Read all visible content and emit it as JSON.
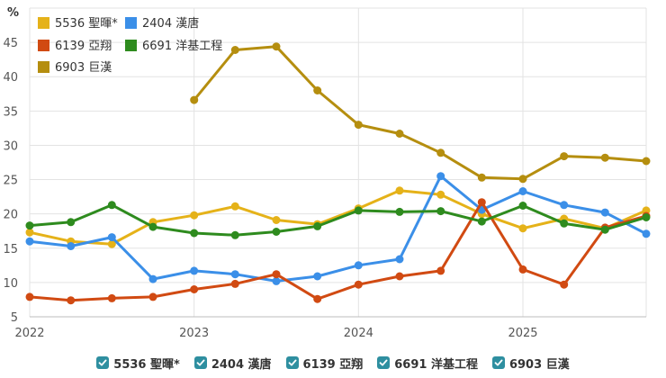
{
  "chart_data": {
    "type": "line",
    "y_unit": "%",
    "ylim": [
      5,
      50
    ],
    "y_ticks": [
      "5",
      "10",
      "15",
      "20",
      "25",
      "30",
      "35",
      "40",
      "45"
    ],
    "xlim": [
      2022.0,
      2025.75
    ],
    "x_ticks": [
      "2022",
      "2023",
      "2024",
      "2025"
    ],
    "grid": true,
    "legend_position": "top-left",
    "series": [
      {
        "name": "5536 聖暉*",
        "color": "#e5b219",
        "points": [
          [
            2022.0,
            17.3
          ],
          [
            2022.25,
            16.0
          ],
          [
            2022.5,
            15.6
          ],
          [
            2022.75,
            18.8
          ],
          [
            2023.0,
            19.8
          ],
          [
            2023.25,
            21.1
          ],
          [
            2023.5,
            19.1
          ],
          [
            2023.75,
            18.5
          ],
          [
            2024.0,
            20.8
          ],
          [
            2024.25,
            23.4
          ],
          [
            2024.5,
            22.8
          ],
          [
            2024.75,
            20.0
          ],
          [
            2025.0,
            17.9
          ],
          [
            2025.25,
            19.3
          ],
          [
            2025.5,
            17.9
          ],
          [
            2025.75,
            20.5
          ]
        ]
      },
      {
        "name": "2404 漢唐",
        "color": "#3b8fe8",
        "points": [
          [
            2022.0,
            16.0
          ],
          [
            2022.25,
            15.3
          ],
          [
            2022.5,
            16.6
          ],
          [
            2022.75,
            10.5
          ],
          [
            2023.0,
            11.7
          ],
          [
            2023.25,
            11.2
          ],
          [
            2023.5,
            10.2
          ],
          [
            2023.75,
            10.9
          ],
          [
            2024.0,
            12.5
          ],
          [
            2024.25,
            13.4
          ],
          [
            2024.5,
            25.5
          ],
          [
            2024.75,
            20.6
          ],
          [
            2025.0,
            23.3
          ],
          [
            2025.25,
            21.3
          ],
          [
            2025.5,
            20.2
          ],
          [
            2025.75,
            17.1
          ]
        ]
      },
      {
        "name": "6139 亞翔",
        "color": "#d14a12",
        "points": [
          [
            2022.0,
            7.9
          ],
          [
            2022.25,
            7.4
          ],
          [
            2022.5,
            7.7
          ],
          [
            2022.75,
            7.9
          ],
          [
            2023.0,
            9.0
          ],
          [
            2023.25,
            9.8
          ],
          [
            2023.5,
            11.2
          ],
          [
            2023.75,
            7.6
          ],
          [
            2024.0,
            9.7
          ],
          [
            2024.25,
            10.9
          ],
          [
            2024.5,
            11.7
          ],
          [
            2024.75,
            21.7
          ],
          [
            2025.0,
            11.9
          ],
          [
            2025.25,
            9.7
          ],
          [
            2025.5,
            18.0
          ],
          [
            2025.75,
            19.7
          ]
        ]
      },
      {
        "name": "6691 洋基工程",
        "color": "#2e8b1e",
        "points": [
          [
            2022.0,
            18.3
          ],
          [
            2022.25,
            18.8
          ],
          [
            2022.5,
            21.3
          ],
          [
            2022.75,
            18.1
          ],
          [
            2023.0,
            17.2
          ],
          [
            2023.25,
            16.9
          ],
          [
            2023.5,
            17.4
          ],
          [
            2023.75,
            18.2
          ],
          [
            2024.0,
            20.5
          ],
          [
            2024.25,
            20.3
          ],
          [
            2024.5,
            20.4
          ],
          [
            2024.75,
            18.9
          ],
          [
            2025.0,
            21.2
          ],
          [
            2025.25,
            18.6
          ],
          [
            2025.5,
            17.7
          ],
          [
            2025.75,
            19.5
          ]
        ]
      },
      {
        "name": "6903 巨漢",
        "color": "#b58e0f",
        "points": [
          [
            2023.0,
            36.6
          ],
          [
            2023.25,
            43.9
          ],
          [
            2023.5,
            44.4
          ],
          [
            2023.75,
            38.0
          ],
          [
            2024.0,
            33.0
          ],
          [
            2024.25,
            31.7
          ],
          [
            2024.5,
            28.9
          ],
          [
            2024.75,
            25.3
          ],
          [
            2025.0,
            25.1
          ],
          [
            2025.25,
            28.4
          ],
          [
            2025.5,
            28.2
          ],
          [
            2025.75,
            27.7
          ]
        ]
      }
    ]
  }
}
